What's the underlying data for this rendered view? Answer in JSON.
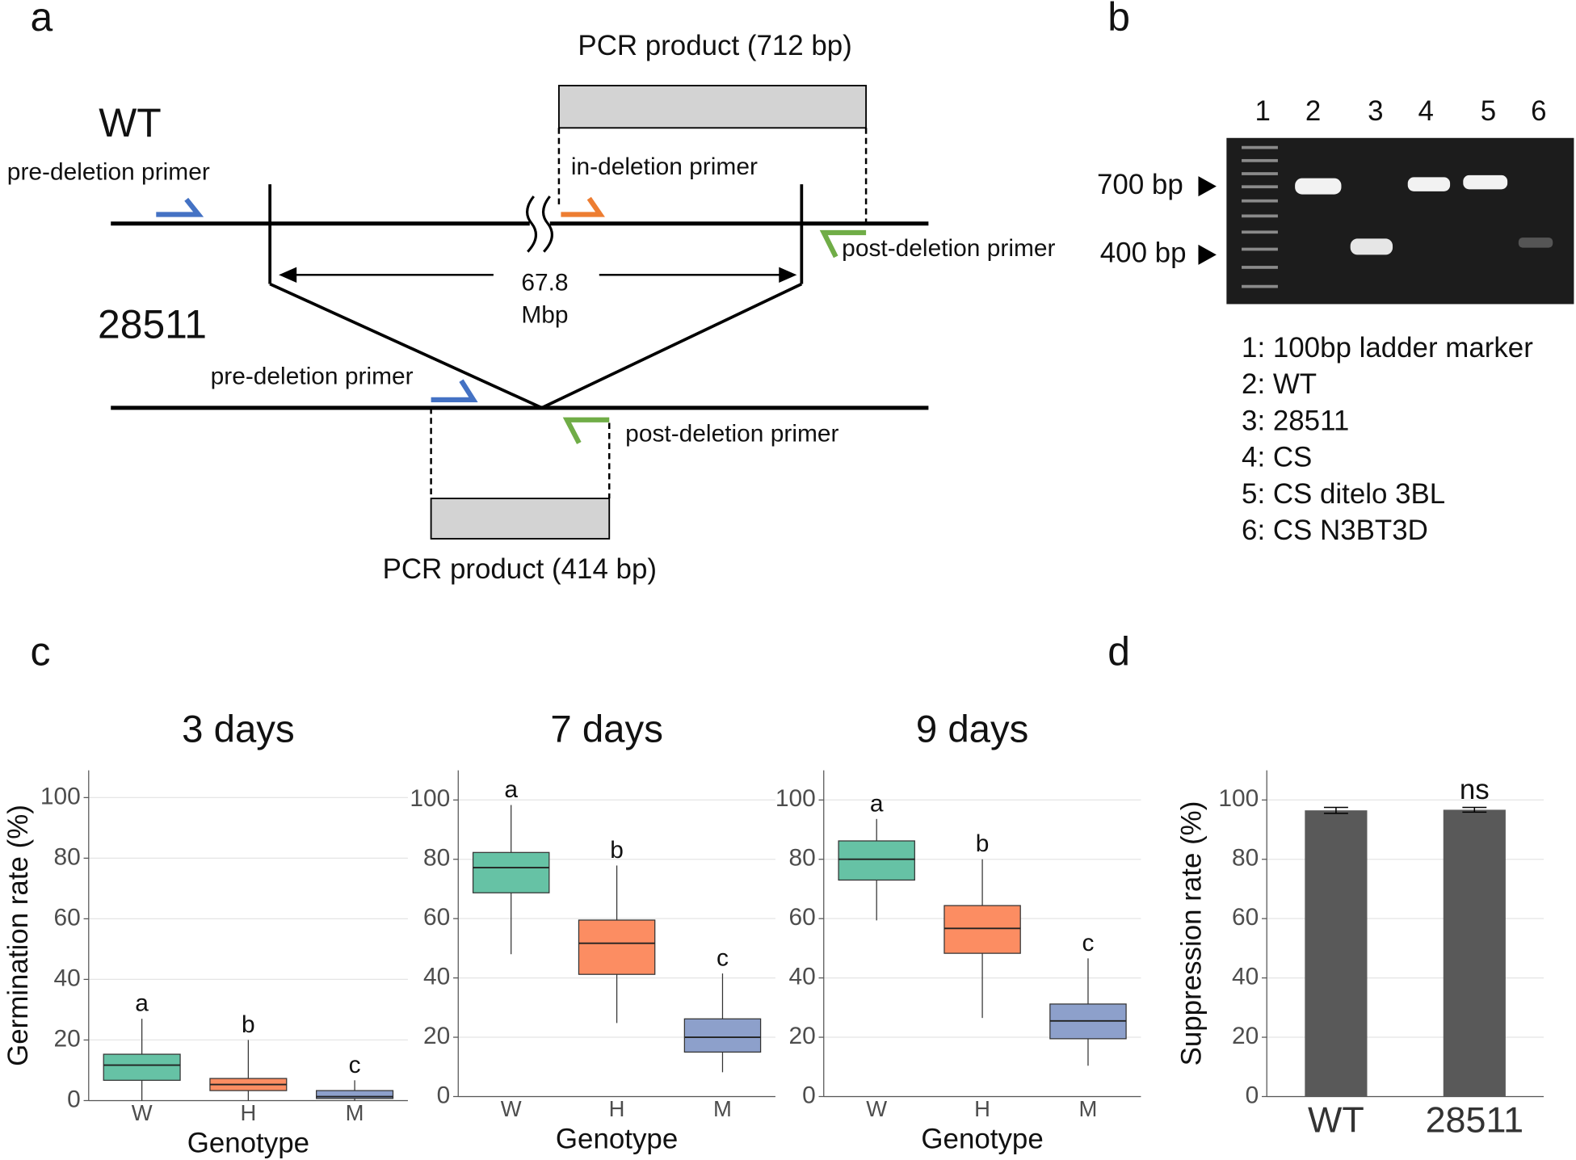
{
  "panel_a": {
    "label": "a",
    "top_product": "PCR product (712 bp)",
    "wt": "WT",
    "mutant": "28511",
    "pre_primer": "pre-deletion primer",
    "in_primer": "in-deletion primer",
    "post_primer": "post-deletion primer",
    "deletion_size": "67.8",
    "deletion_unit": "Mbp",
    "bottom_product": "PCR product (414 bp)"
  },
  "panel_b": {
    "label": "b",
    "lanes": [
      "1",
      "2",
      "3",
      "4",
      "5",
      "6"
    ],
    "markers": [
      "700 bp",
      "400 bp"
    ],
    "legend": [
      "1: 100bp ladder marker",
      "2: WT",
      "3: 28511",
      "4: CS",
      "5: CS ditelo 3BL",
      "6: CS N3BT3D"
    ]
  },
  "panel_c": {
    "label": "c"
  },
  "panel_d": {
    "label": "d"
  },
  "chart_data": [
    {
      "type": "box",
      "title": "3 days",
      "xlabel": "Genotype",
      "ylabel": "Germination rate (%)",
      "categories": [
        "W",
        "H",
        "M"
      ],
      "colors": [
        "#66c2a5",
        "#fc8d62",
        "#8da0cb"
      ],
      "letters": [
        "a",
        "b",
        "c"
      ],
      "stats": [
        {
          "min": 0,
          "q1": 6.7,
          "median": 11.7,
          "q3": 15.3,
          "max": 27
        },
        {
          "min": 0,
          "q1": 3.3,
          "median": 5.3,
          "q3": 7.3,
          "max": 20
        },
        {
          "min": 0,
          "q1": 0.7,
          "median": 1.3,
          "q3": 3.3,
          "max": 6.7
        }
      ],
      "ylim": [
        0,
        109
      ],
      "yticks": [
        0,
        20,
        40,
        60,
        80,
        100
      ],
      "grid": true
    },
    {
      "type": "box",
      "title": "7 days",
      "xlabel": "Genotype",
      "categories": [
        "W",
        "H",
        "M"
      ],
      "colors": [
        "#66c2a5",
        "#fc8d62",
        "#8da0cb"
      ],
      "letters": [
        "a",
        "b",
        "c"
      ],
      "stats": [
        {
          "min": 48,
          "q1": 68.7,
          "median": 77.2,
          "q3": 82.3,
          "max": 98.3
        },
        {
          "min": 24.8,
          "q1": 41.2,
          "median": 51.7,
          "q3": 59.5,
          "max": 77.9
        },
        {
          "min": 8.2,
          "q1": 15,
          "median": 20,
          "q3": 26.2,
          "max": 41.5
        }
      ],
      "ylim": [
        0,
        110
      ],
      "yticks": [
        0,
        20,
        40,
        60,
        80,
        100
      ],
      "grid": true
    },
    {
      "type": "box",
      "title": "9 days",
      "xlabel": "Genotype",
      "categories": [
        "W",
        "H",
        "M"
      ],
      "colors": [
        "#66c2a5",
        "#fc8d62",
        "#8da0cb"
      ],
      "letters": [
        "a",
        "b",
        "c"
      ],
      "stats": [
        {
          "min": 59.4,
          "q1": 73,
          "median": 80,
          "q3": 86.2,
          "max": 93.6
        },
        {
          "min": 26.5,
          "q1": 48.3,
          "median": 56.7,
          "q3": 64.4,
          "max": 80
        },
        {
          "min": 10.4,
          "q1": 19.5,
          "median": 25.5,
          "q3": 31.2,
          "max": 46.6
        }
      ],
      "ylim": [
        0,
        110
      ],
      "yticks": [
        0,
        20,
        40,
        60,
        80,
        100
      ],
      "grid": true
    },
    {
      "type": "bar",
      "ylabel": "Suppression rate (%)",
      "categories": [
        "WT",
        "28511"
      ],
      "values": [
        96.5,
        96.7
      ],
      "errors": [
        1,
        0.8
      ],
      "color": "#595959",
      "annotations": [
        {
          "text": "ns",
          "x": "28511"
        }
      ],
      "ylim": [
        0,
        110
      ],
      "yticks": [
        0,
        20,
        40,
        60,
        80,
        100
      ],
      "grid": true
    }
  ]
}
